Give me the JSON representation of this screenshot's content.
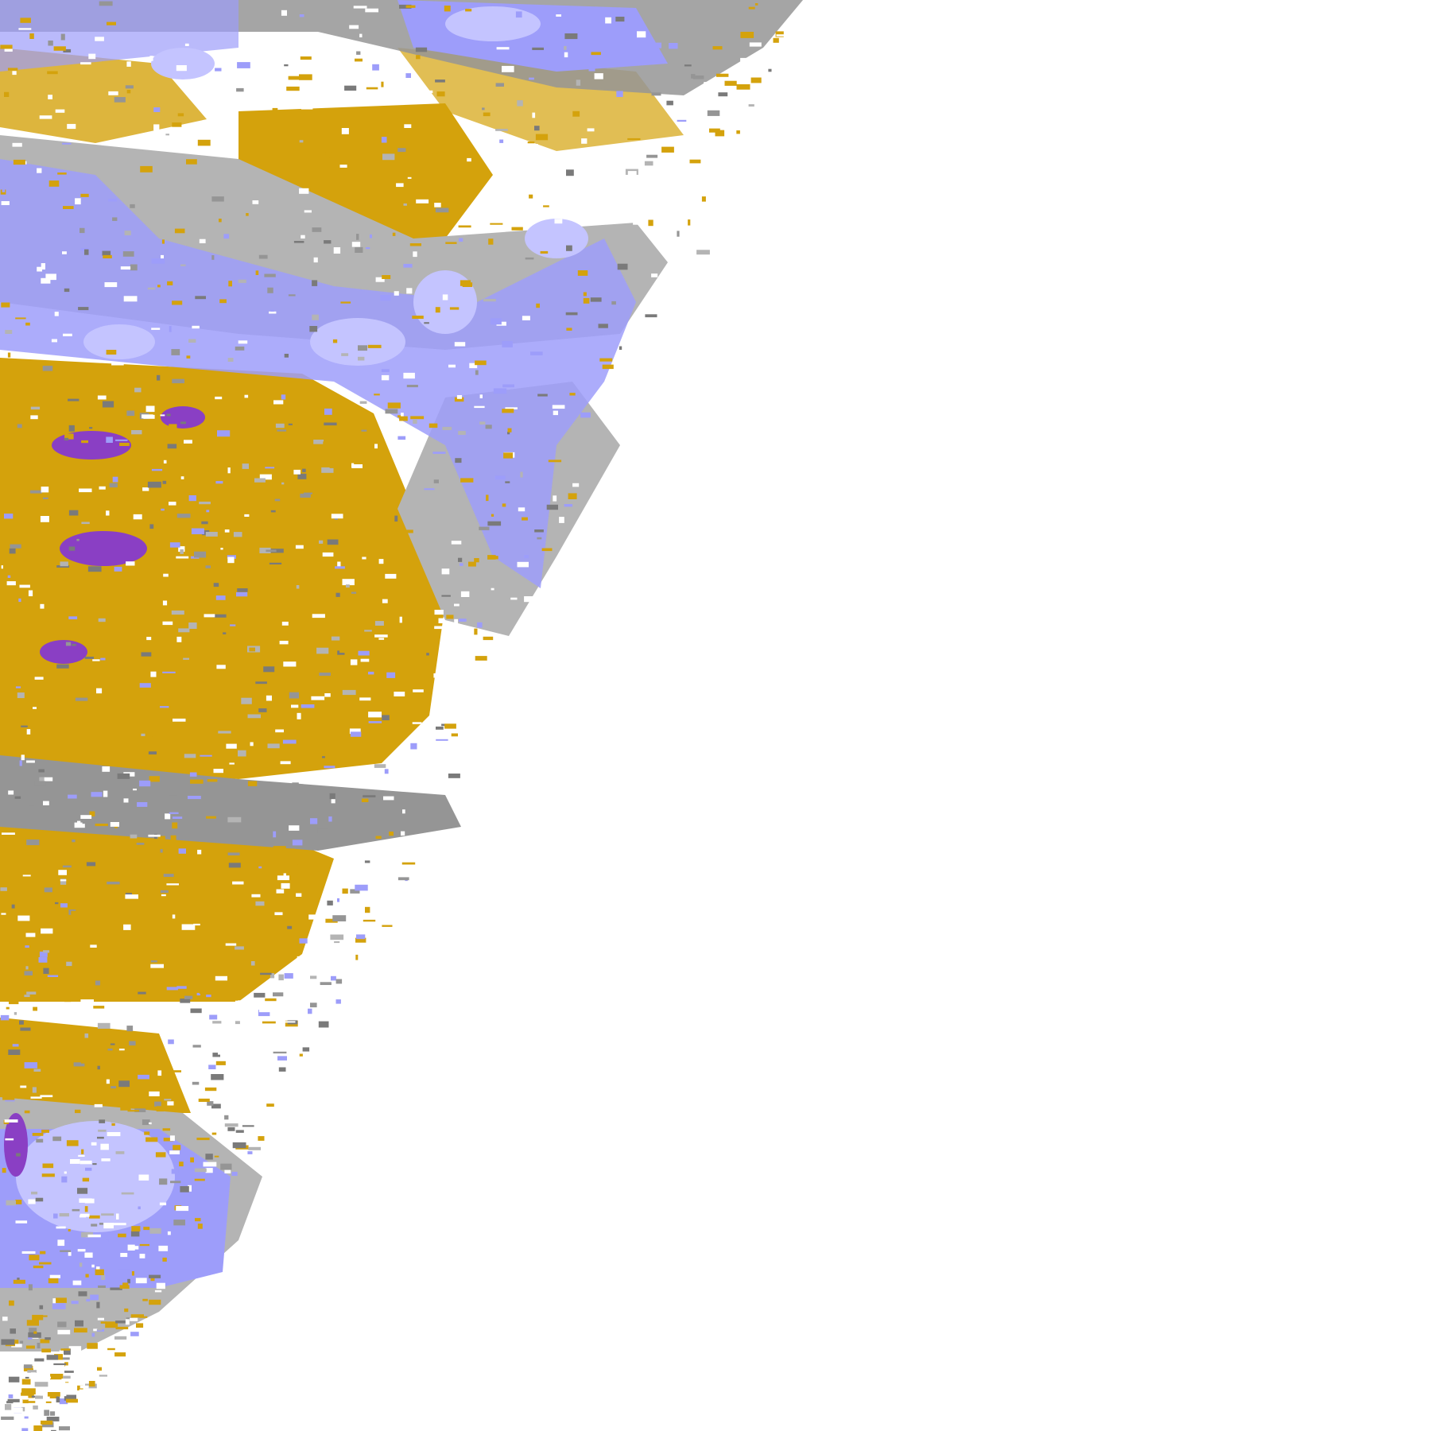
{
  "map": {
    "type": "classified raster overlay tile",
    "background": "#ffffff",
    "palette": {
      "gold": "#d4a20c",
      "purple": "#8a3fc4",
      "lavender_light": "#c4c4ff",
      "lavender": "#9d9dfa",
      "gray_light": "#b4b4b4",
      "gray": "#959595",
      "gray_dark": "#7a7a7a"
    }
  }
}
